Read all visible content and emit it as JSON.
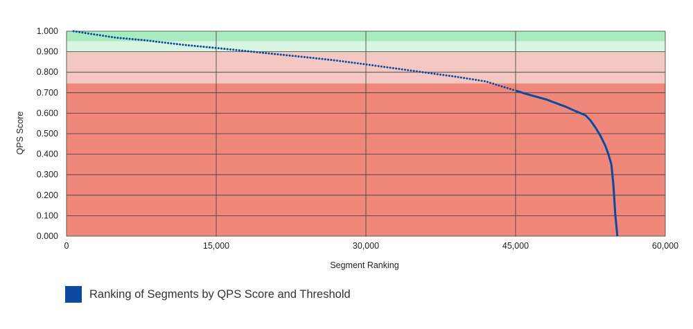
{
  "chart_data": {
    "type": "line",
    "xlabel": "Segment Ranking",
    "ylabel": "QPS Score",
    "xlim": [
      0,
      60000
    ],
    "ylim": [
      0,
      1.0
    ],
    "xticks": [
      0,
      15000,
      30000,
      45000,
      60000
    ],
    "xtick_labels": [
      "0",
      "15,000",
      "30,000",
      "45,000",
      "60,000"
    ],
    "yticks": [
      0,
      0.1,
      0.2,
      0.3,
      0.4,
      0.5,
      0.6,
      0.7,
      0.8,
      0.9,
      1.0
    ],
    "ytick_labels": [
      "0.000",
      "0.100",
      "0.200",
      "0.300",
      "0.400",
      "0.500",
      "0.600",
      "0.700",
      "0.800",
      "0.900",
      "1.000"
    ],
    "grid": true,
    "bands": [
      {
        "from": 0.95,
        "to": 1.0,
        "color": "#a8ebc0"
      },
      {
        "from": 0.9,
        "to": 0.95,
        "color": "#d8f6e2"
      },
      {
        "from": 0.745,
        "to": 0.9,
        "color": "#f4c8c2"
      },
      {
        "from": 0.0,
        "to": 0.745,
        "color": "#ef877a"
      }
    ],
    "series": [
      {
        "name": "Ranking of Segments by QPS Score and Threshold",
        "color": "#0b4a9e",
        "dotted_until_x": 45500,
        "x": [
          700,
          2000,
          5000,
          8000,
          10000,
          12000,
          15000,
          18000,
          21000,
          24000,
          27000,
          30000,
          33000,
          36000,
          39000,
          42000,
          45000,
          46000,
          48000,
          50000,
          51000,
          52000,
          52500,
          53000,
          53500,
          54000,
          54300,
          54600,
          54800,
          55000,
          55200
        ],
        "y": [
          1.0,
          0.99,
          0.968,
          0.955,
          0.943,
          0.932,
          0.918,
          0.903,
          0.888,
          0.873,
          0.857,
          0.838,
          0.818,
          0.798,
          0.778,
          0.755,
          0.71,
          0.695,
          0.668,
          0.632,
          0.61,
          0.59,
          0.565,
          0.53,
          0.49,
          0.44,
          0.4,
          0.35,
          0.25,
          0.1,
          0.0
        ]
      }
    ]
  },
  "legend": {
    "label": "Ranking of Segments by QPS Score and Threshold",
    "color": "#0b4a9e"
  }
}
